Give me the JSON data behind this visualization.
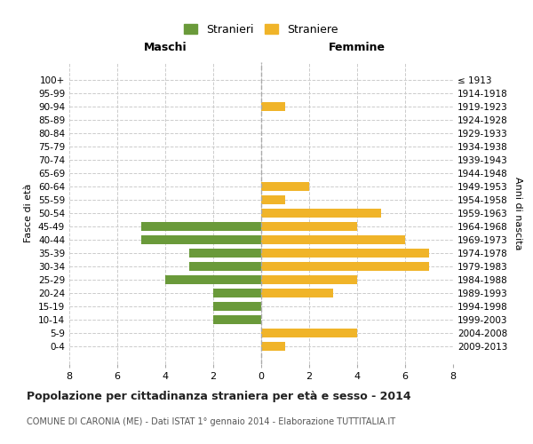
{
  "age_groups": [
    "100+",
    "95-99",
    "90-94",
    "85-89",
    "80-84",
    "75-79",
    "70-74",
    "65-69",
    "60-64",
    "55-59",
    "50-54",
    "45-49",
    "40-44",
    "35-39",
    "30-34",
    "25-29",
    "20-24",
    "15-19",
    "10-14",
    "5-9",
    "0-4"
  ],
  "birth_years": [
    "≤ 1913",
    "1914-1918",
    "1919-1923",
    "1924-1928",
    "1929-1933",
    "1934-1938",
    "1939-1943",
    "1944-1948",
    "1949-1953",
    "1954-1958",
    "1959-1963",
    "1964-1968",
    "1969-1973",
    "1974-1978",
    "1979-1983",
    "1984-1988",
    "1989-1993",
    "1994-1998",
    "1999-2003",
    "2004-2008",
    "2009-2013"
  ],
  "maschi_stranieri": [
    0,
    0,
    0,
    0,
    0,
    0,
    0,
    0,
    0,
    0,
    0,
    5,
    5,
    3,
    3,
    4,
    2,
    2,
    2,
    0,
    0
  ],
  "femmine_straniere": [
    0,
    0,
    1,
    0,
    0,
    0,
    0,
    0,
    2,
    1,
    5,
    4,
    6,
    7,
    7,
    4,
    3,
    0,
    0,
    4,
    1
  ],
  "color_maschi": "#6a9a3a",
  "color_femmine": "#f0b429",
  "title": "Popolazione per cittadinanza straniera per età e sesso - 2014",
  "subtitle": "COMUNE DI CARONIA (ME) - Dati ISTAT 1° gennaio 2014 - Elaborazione TUTTITALIA.IT",
  "xlabel_left": "Maschi",
  "xlabel_right": "Femmine",
  "ylabel_left": "Fasce di età",
  "ylabel_right": "Anni di nascita",
  "legend_maschi": "Stranieri",
  "legend_femmine": "Straniere",
  "xlim": 8,
  "background_color": "#ffffff",
  "grid_color": "#cccccc"
}
